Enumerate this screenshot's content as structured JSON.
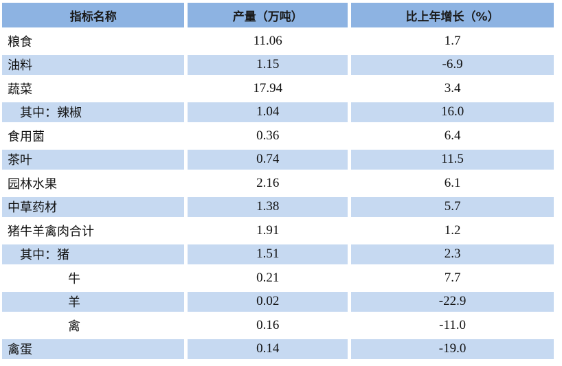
{
  "table": {
    "header": [
      "指标名称",
      "产量（万吨）",
      "比上年增长（%）"
    ],
    "rows": [
      [
        "粮食",
        "11.06",
        "1.7"
      ],
      [
        "油料",
        "1.15",
        "-6.9"
      ],
      [
        "蔬菜",
        "17.94",
        "3.4"
      ],
      [
        "其中：辣椒",
        "1.04",
        "16.0"
      ],
      [
        "食用菌",
        "0.36",
        "6.4"
      ],
      [
        "茶叶",
        "0.74",
        "11.5"
      ],
      [
        "园林水果",
        "2.16",
        "6.1"
      ],
      [
        "中草药材",
        "1.38",
        "5.7"
      ],
      [
        "猪牛羊禽肉合计",
        "1.91",
        "1.2"
      ],
      [
        "其中：猪",
        "1.51",
        "2.3"
      ],
      [
        "牛",
        "0.21",
        "7.7"
      ],
      [
        "羊",
        "0.02",
        "-22.9"
      ],
      [
        "禽",
        "0.16",
        "-11.0"
      ],
      [
        "禽蛋",
        "0.14",
        "-19.0"
      ]
    ]
  }
}
